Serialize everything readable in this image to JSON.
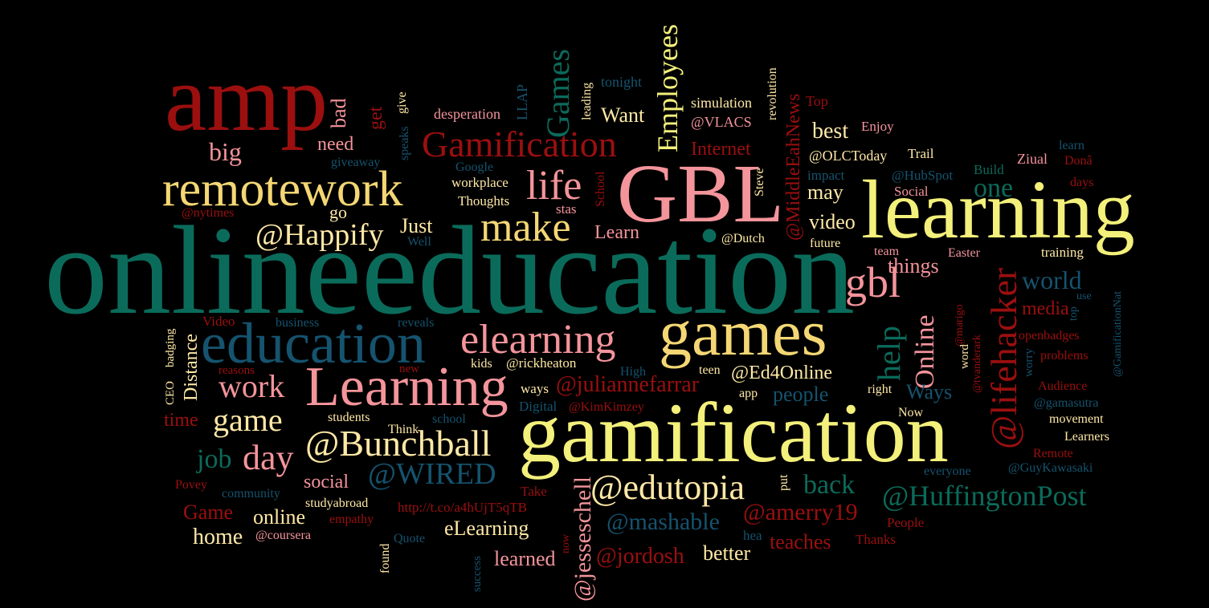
{
  "palette": {
    "red": "#9b0f0f",
    "teal": "#0b6b5b",
    "blue": "#15536e",
    "pink": "#f4949b",
    "cream": "#ffe9a6",
    "yellow": "#f3f07b",
    "gold": "#f4d774"
  },
  "words": [
    {
      "text": "onlineeducation",
      "color": "teal"
    },
    {
      "text": "amp",
      "color": "red"
    },
    {
      "text": "GBL",
      "color": "pink"
    },
    {
      "text": "learning",
      "color": "yellow"
    },
    {
      "text": "gamification",
      "color": "yellow"
    },
    {
      "text": "games",
      "color": "gold"
    },
    {
      "text": "education",
      "color": "blue"
    },
    {
      "text": "Learning",
      "color": "pink"
    },
    {
      "text": "remotework",
      "color": "gold"
    },
    {
      "text": "elearning",
      "color": "pink"
    },
    {
      "text": "Gamification",
      "color": "red"
    },
    {
      "text": "life",
      "color": "pink"
    },
    {
      "text": "make",
      "color": "gold"
    },
    {
      "text": "@Bunchball",
      "color": "cream"
    },
    {
      "text": "@edutopia",
      "color": "cream"
    },
    {
      "text": "@lifehacker",
      "color": "red"
    },
    {
      "text": "gbl",
      "color": "pink"
    },
    {
      "text": "@HuffingtonPost",
      "color": "teal"
    },
    {
      "text": "@WIRED",
      "color": "blue"
    },
    {
      "text": "@Happify",
      "color": "cream"
    },
    {
      "text": "Employees",
      "color": "yellow"
    },
    {
      "text": "Games",
      "color": "teal"
    },
    {
      "text": "help",
      "color": "teal"
    },
    {
      "text": "Online",
      "color": "pink"
    },
    {
      "text": "@jesseschell",
      "color": "pink"
    },
    {
      "text": "@MiddleEahNews",
      "color": "red"
    },
    {
      "text": "game",
      "color": "cream"
    },
    {
      "text": "work",
      "color": "pink"
    },
    {
      "text": "day",
      "color": "pink"
    },
    {
      "text": "job",
      "color": "teal"
    },
    {
      "text": "big",
      "color": "pink"
    },
    {
      "text": "world",
      "color": "blue"
    },
    {
      "text": "one",
      "color": "teal"
    },
    {
      "text": "back",
      "color": "teal"
    },
    {
      "text": "@mashable",
      "color": "blue"
    },
    {
      "text": "@amerry19",
      "color": "red"
    },
    {
      "text": "@jordosh",
      "color": "red"
    },
    {
      "text": "@juliannefarrar",
      "color": "red"
    },
    {
      "text": "@Ed4Online",
      "color": "cream"
    },
    {
      "text": "Distance",
      "color": "cream"
    },
    {
      "text": "Just",
      "color": "cream"
    },
    {
      "text": "Want",
      "color": "cream"
    },
    {
      "text": "Learn",
      "color": "pink"
    },
    {
      "text": "best",
      "color": "cream"
    },
    {
      "text": "may",
      "color": "cream"
    },
    {
      "text": "video",
      "color": "cream"
    },
    {
      "text": "things",
      "color": "pink"
    },
    {
      "text": "media",
      "color": "red"
    },
    {
      "text": "Ways",
      "color": "blue"
    },
    {
      "text": "people",
      "color": "blue"
    },
    {
      "text": "teaches",
      "color": "red"
    },
    {
      "text": "better",
      "color": "cream"
    },
    {
      "text": "learned",
      "color": "pink"
    },
    {
      "text": "eLearning",
      "color": "cream"
    },
    {
      "text": "online",
      "color": "cream"
    },
    {
      "text": "home",
      "color": "cream"
    },
    {
      "text": "social",
      "color": "pink"
    },
    {
      "text": "Game",
      "color": "red"
    },
    {
      "text": "time",
      "color": "red"
    },
    {
      "text": "need",
      "color": "pink"
    },
    {
      "text": "bad",
      "color": "pink"
    },
    {
      "text": "get",
      "color": "red"
    },
    {
      "text": "Internet",
      "color": "red"
    },
    {
      "text": "go",
      "color": "cream"
    },
    {
      "text": "@nytimes",
      "color": "red"
    },
    {
      "text": "give",
      "color": "cream"
    },
    {
      "text": "speaks",
      "color": "blue"
    },
    {
      "text": "giveaway",
      "color": "blue"
    },
    {
      "text": "desperation",
      "color": "pink"
    },
    {
      "text": "LLAP",
      "color": "blue"
    },
    {
      "text": "leading",
      "color": "cream"
    },
    {
      "text": "tonight",
      "color": "blue"
    },
    {
      "text": "simulation",
      "color": "cream"
    },
    {
      "text": "@VLACS",
      "color": "pink"
    },
    {
      "text": "revolution",
      "color": "cream"
    },
    {
      "text": "Top",
      "color": "red"
    },
    {
      "text": "Enjoy",
      "color": "pink"
    },
    {
      "text": "@OLCToday",
      "color": "cream"
    },
    {
      "text": "Trail",
      "color": "cream"
    },
    {
      "text": "learn",
      "color": "blue"
    },
    {
      "text": "Ziual",
      "color": "pink"
    },
    {
      "text": "Donâ",
      "color": "red"
    },
    {
      "text": "Build",
      "color": "teal"
    },
    {
      "text": "days",
      "color": "red"
    },
    {
      "text": "@HubSpot",
      "color": "blue"
    },
    {
      "text": "impact",
      "color": "blue"
    },
    {
      "text": "Social",
      "color": "pink"
    },
    {
      "text": "Google",
      "color": "blue"
    },
    {
      "text": "workplace",
      "color": "cream"
    },
    {
      "text": "Thoughts",
      "color": "cream"
    },
    {
      "text": "School",
      "color": "red"
    },
    {
      "text": "Steve",
      "color": "cream"
    },
    {
      "text": "stas",
      "color": "pink"
    },
    {
      "text": "@Dutch",
      "color": "cream"
    },
    {
      "text": "future",
      "color": "cream"
    },
    {
      "text": "team",
      "color": "pink"
    },
    {
      "text": "Easter",
      "color": "pink"
    },
    {
      "text": "training",
      "color": "cream"
    },
    {
      "text": "use",
      "color": "blue"
    },
    {
      "text": "top",
      "color": "blue"
    },
    {
      "text": "@GamificationNat",
      "color": "blue"
    },
    {
      "text": "@marigo",
      "color": "red"
    },
    {
      "text": "@tvanderark",
      "color": "red"
    },
    {
      "text": "word",
      "color": "cream"
    },
    {
      "text": "openbadges",
      "color": "red"
    },
    {
      "text": "worry",
      "color": "blue"
    },
    {
      "text": "problems",
      "color": "red"
    },
    {
      "text": "Audience",
      "color": "red"
    },
    {
      "text": "@gamasutra",
      "color": "blue"
    },
    {
      "text": "movement",
      "color": "cream"
    },
    {
      "text": "Learners",
      "color": "cream"
    },
    {
      "text": "Remote",
      "color": "red"
    },
    {
      "text": "@GuyKawasaki",
      "color": "blue"
    },
    {
      "text": "everyone",
      "color": "blue"
    },
    {
      "text": "People",
      "color": "red"
    },
    {
      "text": "Thanks",
      "color": "red"
    },
    {
      "text": "hea",
      "color": "blue"
    },
    {
      "text": "put",
      "color": "cream"
    },
    {
      "text": "Take",
      "color": "red"
    },
    {
      "text": "http://t.co/a4hUjT5qTB",
      "color": "red"
    },
    {
      "text": "now",
      "color": "red"
    },
    {
      "text": "success",
      "color": "blue"
    },
    {
      "text": "found",
      "color": "cream"
    },
    {
      "text": "Quote",
      "color": "blue"
    },
    {
      "text": "@coursera",
      "color": "pink"
    },
    {
      "text": "empathy",
      "color": "red"
    },
    {
      "text": "studyabroad",
      "color": "cream"
    },
    {
      "text": "community",
      "color": "blue"
    },
    {
      "text": "Povey",
      "color": "red"
    },
    {
      "text": "CEO",
      "color": "cream"
    },
    {
      "text": "badging",
      "color": "cream"
    },
    {
      "text": "Video",
      "color": "red"
    },
    {
      "text": "business",
      "color": "blue"
    },
    {
      "text": "reveals",
      "color": "blue"
    },
    {
      "text": "reasons",
      "color": "red"
    },
    {
      "text": "new",
      "color": "red"
    },
    {
      "text": "kids",
      "color": "cream"
    },
    {
      "text": "@rickheaton",
      "color": "cream"
    },
    {
      "text": "High",
      "color": "blue"
    },
    {
      "text": "teen",
      "color": "cream"
    },
    {
      "text": "app",
      "color": "cream"
    },
    {
      "text": "right",
      "color": "cream"
    },
    {
      "text": "Now",
      "color": "cream"
    },
    {
      "text": "ways",
      "color": "cream"
    },
    {
      "text": "Digital",
      "color": "blue"
    },
    {
      "text": "@KimKimzey",
      "color": "red"
    },
    {
      "text": "students",
      "color": "cream"
    },
    {
      "text": "Think",
      "color": "cream"
    },
    {
      "text": "school",
      "color": "blue"
    },
    {
      "text": "Well",
      "color": "blue"
    }
  ]
}
